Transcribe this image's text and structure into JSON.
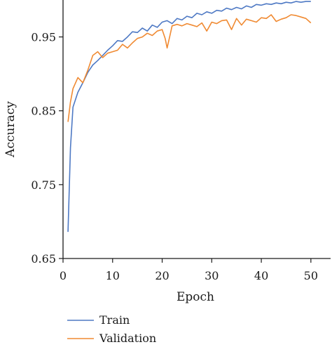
{
  "chart_data": {
    "type": "line",
    "title": "",
    "xlabel": "Epoch",
    "ylabel": "Accuracy",
    "xlim": [
      0,
      52
    ],
    "ylim": [
      0.65,
      1.0
    ],
    "xticks": [
      0,
      10,
      20,
      30,
      40,
      50
    ],
    "yticks": [
      0.65,
      0.75,
      0.85,
      0.95
    ],
    "ytick_labels": [
      "0.65",
      "0.75",
      "0.85",
      "0.95"
    ],
    "xtick_labels": [
      "0",
      "10",
      "20",
      "30",
      "40",
      "50"
    ],
    "grid": false,
    "legend_position": "bottom-left",
    "series": [
      {
        "name": "Train",
        "color": "#4e79c4",
        "x": [
          1,
          1.5,
          2,
          3,
          4,
          5,
          6,
          7,
          8,
          9,
          10,
          11,
          12,
          13,
          14,
          15,
          16,
          17,
          18,
          19,
          20,
          21,
          22,
          23,
          24,
          25,
          26,
          27,
          28,
          29,
          30,
          31,
          32,
          33,
          34,
          35,
          36,
          37,
          38,
          39,
          40,
          41,
          42,
          43,
          44,
          45,
          46,
          47,
          48,
          49,
          50
        ],
        "values": [
          0.686,
          0.8,
          0.855,
          0.875,
          0.888,
          0.902,
          0.912,
          0.918,
          0.925,
          0.932,
          0.938,
          0.945,
          0.944,
          0.95,
          0.957,
          0.956,
          0.962,
          0.958,
          0.966,
          0.963,
          0.97,
          0.972,
          0.968,
          0.975,
          0.973,
          0.978,
          0.976,
          0.982,
          0.98,
          0.984,
          0.982,
          0.986,
          0.985,
          0.989,
          0.987,
          0.99,
          0.988,
          0.992,
          0.99,
          0.994,
          0.993,
          0.995,
          0.994,
          0.996,
          0.995,
          0.997,
          0.996,
          0.998,
          0.997,
          0.998,
          0.998
        ]
      },
      {
        "name": "Validation",
        "color": "#f08a32",
        "x": [
          1,
          1.5,
          2,
          3,
          4,
          5,
          6,
          7,
          8,
          9,
          10,
          11,
          12,
          13,
          14,
          15,
          16,
          17,
          18,
          19,
          20,
          20.6,
          21,
          21.5,
          22,
          23,
          24,
          25,
          26,
          27,
          28,
          29,
          30,
          31,
          32,
          33,
          34,
          35,
          36,
          37,
          38,
          39,
          40,
          41,
          42,
          43,
          44,
          45,
          46,
          47,
          48,
          49,
          50
        ],
        "values": [
          0.835,
          0.862,
          0.88,
          0.895,
          0.888,
          0.905,
          0.925,
          0.93,
          0.922,
          0.928,
          0.93,
          0.932,
          0.94,
          0.935,
          0.942,
          0.948,
          0.95,
          0.955,
          0.952,
          0.958,
          0.96,
          0.948,
          0.935,
          0.95,
          0.965,
          0.967,
          0.965,
          0.968,
          0.966,
          0.964,
          0.969,
          0.958,
          0.97,
          0.968,
          0.972,
          0.973,
          0.96,
          0.975,
          0.966,
          0.974,
          0.972,
          0.97,
          0.976,
          0.975,
          0.98,
          0.971,
          0.974,
          0.976,
          0.98,
          0.979,
          0.977,
          0.975,
          0.969
        ]
      }
    ]
  }
}
